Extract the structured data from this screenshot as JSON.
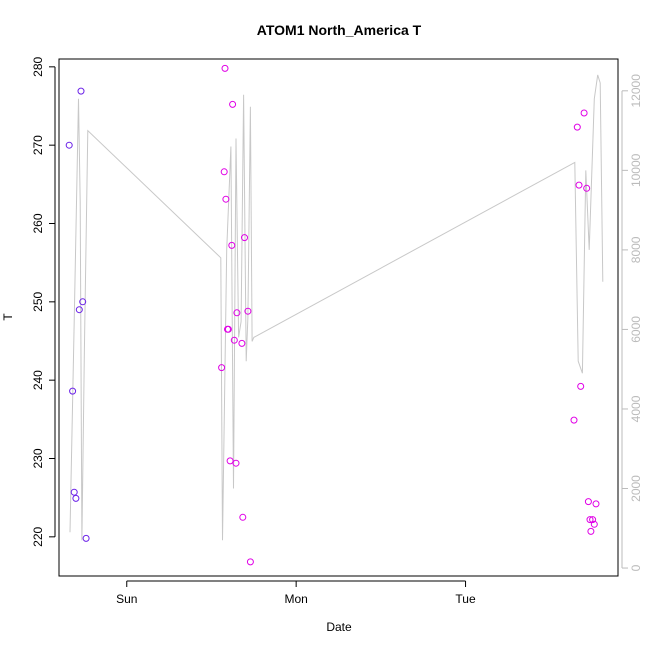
{
  "chart_data": {
    "type": "scatter",
    "title": "ATOM1 North_America T",
    "xlabel": "Date",
    "ylabel": "T",
    "grid": false,
    "legend": "none",
    "x_ticks": [
      {
        "label": "Sun",
        "value": 1.0
      },
      {
        "label": "Mon",
        "value": 2.0
      },
      {
        "label": "Tue",
        "value": 3.0
      }
    ],
    "y_ticks": [
      220,
      230,
      240,
      250,
      260,
      270,
      280
    ],
    "ylim": [
      215,
      281
    ],
    "y2_ticks": [
      0,
      2000,
      4000,
      6000,
      8000,
      10000,
      12000
    ],
    "y2lim": [
      -200,
      12800
    ],
    "xlim": [
      0.6,
      3.9
    ],
    "colors": {
      "axis": "#000000",
      "right_axis": "#bbbbbb",
      "line": "#c8c8c8"
    },
    "series": [
      {
        "type": "points",
        "x": [
          0.66,
          0.68,
          0.69,
          0.7,
          0.72,
          0.73,
          0.74,
          0.76,
          1.56,
          1.575,
          1.58,
          1.585,
          1.595,
          1.6,
          1.61,
          1.62,
          1.625,
          1.635,
          1.645,
          1.65,
          1.68,
          1.685,
          1.695,
          1.715,
          1.73,
          3.64,
          3.66,
          3.67,
          3.68,
          3.7,
          3.715,
          3.725,
          3.735,
          3.74,
          3.75,
          3.76,
          3.77
        ],
        "y": [
          270.0,
          238.6,
          225.7,
          224.9,
          249.0,
          276.9,
          250.0,
          219.8,
          241.6,
          266.6,
          279.8,
          263.1,
          246.5,
          246.5,
          229.7,
          257.2,
          275.2,
          245.1,
          229.4,
          248.6,
          244.7,
          222.5,
          258.2,
          248.8,
          216.8,
          234.9,
          272.3,
          264.9,
          239.2,
          274.1,
          264.5,
          224.5,
          222.2,
          220.7,
          222.2,
          221.6,
          224.2
        ],
        "colors": [
          "#6b21e8",
          "#6b21e8",
          "#6b21e8",
          "#6b21e8",
          "#6b21e8",
          "#6b21e8",
          "#6b21e8",
          "#6b21e8",
          "#e000e6",
          "#e000e6",
          "#e000e6",
          "#e000e6",
          "#e000e6",
          "#e000e6",
          "#e000e6",
          "#e000e6",
          "#e000e6",
          "#e000e6",
          "#e000e6",
          "#e000e6",
          "#e000e6",
          "#e000e6",
          "#e000e6",
          "#e000e6",
          "#e000e6",
          "#e000e6",
          "#e000e6",
          "#e000e6",
          "#e000e6",
          "#e000e6",
          "#e000e6",
          "#e000e6",
          "#e000e6",
          "#e000e6",
          "#e000e6",
          "#e000e6",
          "#e000e6"
        ]
      },
      {
        "type": "line",
        "axis": "right",
        "x": [
          0.665,
          0.69,
          0.715,
          0.725,
          0.735,
          0.75,
          0.77,
          1.555,
          1.565,
          1.59,
          1.615,
          1.63,
          1.645,
          1.66,
          1.675,
          1.69,
          1.705,
          1.715,
          1.73,
          1.74,
          1.75,
          3.645,
          3.665,
          3.69,
          3.71,
          3.73,
          3.76,
          3.78,
          3.795,
          3.81
        ],
        "y": [
          900,
          6200,
          11800,
          9200,
          700,
          5500,
          11000,
          7800,
          700,
          8000,
          10600,
          2000,
          10800,
          5800,
          6200,
          11900,
          5200,
          6300,
          11600,
          5700,
          5800,
          10200,
          5200,
          4900,
          10000,
          8000,
          11800,
          12400,
          12200,
          7200
        ]
      }
    ]
  }
}
